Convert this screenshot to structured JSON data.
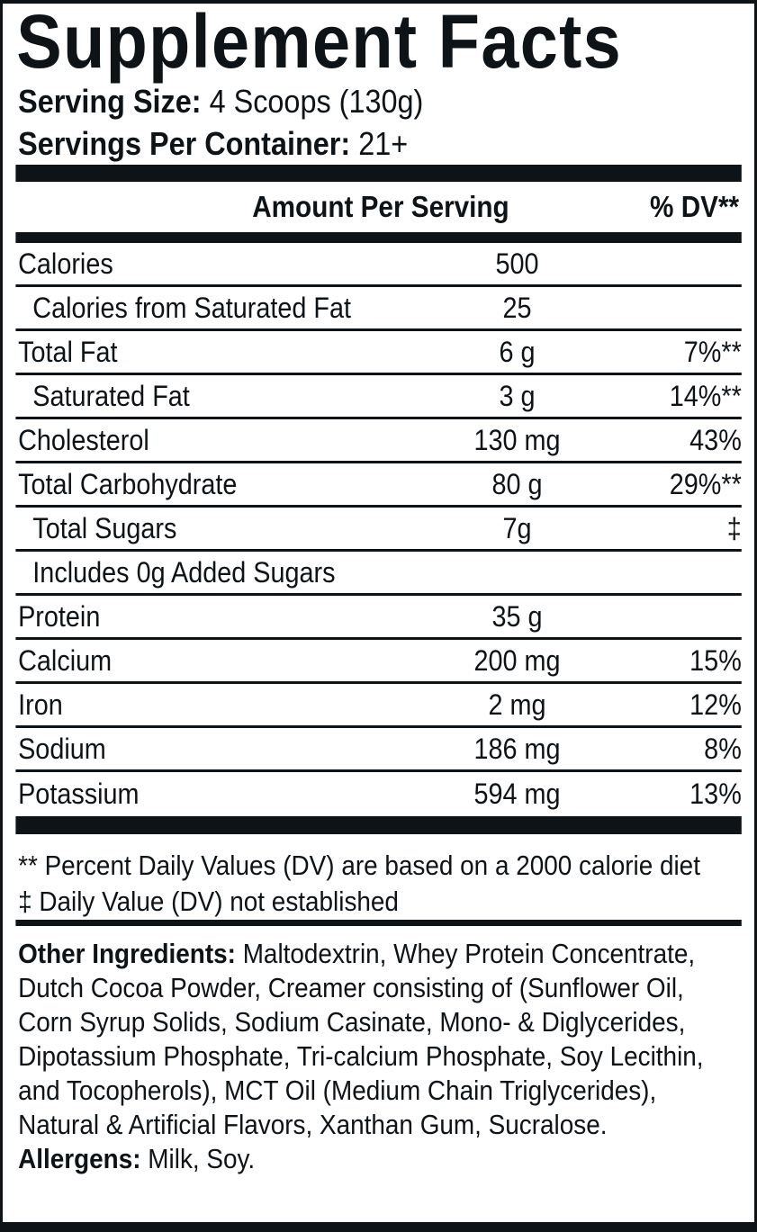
{
  "title": "Supplement Facts",
  "serving": {
    "size_label": "Serving Size:",
    "size_value": "4 Scoops (130g)",
    "per_container_label": "Servings Per Container:",
    "per_container_value": "21+"
  },
  "table": {
    "amount_header": "Amount Per Serving",
    "dv_header": "% DV**",
    "rows": [
      {
        "label": "Calories",
        "amount": "500",
        "dv": ""
      },
      {
        "label": "Calories from Saturated Fat",
        "amount": "25",
        "dv": ""
      },
      {
        "label": "Total Fat",
        "amount": "6 g",
        "dv": "7%**"
      },
      {
        "label": "Saturated Fat",
        "amount": "3 g",
        "dv": "14%**"
      },
      {
        "label": "Cholesterol",
        "amount": "130 mg",
        "dv": "43%"
      },
      {
        "label": "Total Carbohydrate",
        "amount": "80 g",
        "dv": "29%**"
      },
      {
        "label": "Total Sugars",
        "amount": "7g",
        "dv": "‡"
      },
      {
        "label": "Includes 0g Added Sugars",
        "amount": "",
        "dv": ""
      },
      {
        "label": "Protein",
        "amount": "35 g",
        "dv": ""
      },
      {
        "label": "Calcium",
        "amount": "200 mg",
        "dv": "15%"
      },
      {
        "label": "Iron",
        "amount": "2 mg",
        "dv": "12%"
      },
      {
        "label": "Sodium",
        "amount": "186 mg",
        "dv": "8%"
      },
      {
        "label": "Potassium",
        "amount": "594 mg",
        "dv": "13%"
      }
    ]
  },
  "footnotes": [
    "** Percent Daily Values (DV) are based on a 2000 calorie diet",
    "‡ Daily Value (DV) not established"
  ],
  "other_ingredients": {
    "label": "Other Ingredients:",
    "first_line": "Maltodextrin, Whey Protein Concentrate,",
    "lines": [
      "Dutch Cocoa Powder, Creamer consisting of (Sunflower Oil,",
      "Corn Syrup Solids, Sodium Casinate, Mono- & Diglycerides,",
      "Dipotassium Phosphate, Tri-calcium Phosphate, Soy Lecithin,",
      "and Tocopherols), MCT Oil (Medium Chain Triglycerides),",
      "Natural & Artificial Flavors, Xanthan Gum, Sucralose."
    ]
  },
  "allergens": {
    "label": "Allergens:",
    "value": "Milk, Soy."
  },
  "colors": {
    "ink": "#0e1317",
    "background": "#ffffff"
  }
}
